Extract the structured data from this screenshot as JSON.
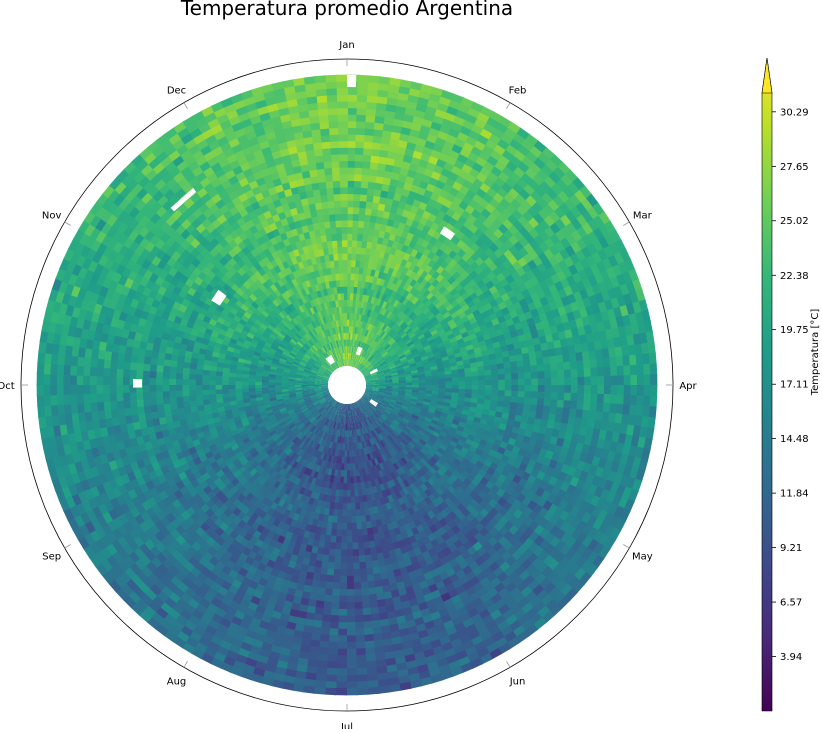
{
  "chart_data": {
    "type": "heatmap",
    "subtype": "polar",
    "title": "Temperatura promedio Argentina",
    "angular_labels": [
      "Jan",
      "Feb",
      "Mar",
      "Apr",
      "May",
      "Jun",
      "Jul",
      "Aug",
      "Sep",
      "Oct",
      "Nov",
      "Dec"
    ],
    "angular_direction": "clockwise",
    "angular_zero": "top",
    "radial_grid": false,
    "colorbar": {
      "label": "Temperatura [°C]",
      "ticks": [
        "3.94",
        "6.57",
        "9.21",
        "11.84",
        "14.48",
        "17.11",
        "19.75",
        "22.38",
        "25.02",
        "27.65",
        "30.29"
      ],
      "extend": "max",
      "colormap": "viridis",
      "colormap_stops": [
        "#440154",
        "#482878",
        "#3e4989",
        "#31688e",
        "#26828e",
        "#1f9e89",
        "#35b779",
        "#6ece58",
        "#b5de2b",
        "#fde725"
      ]
    },
    "monthly_pattern": {
      "months": [
        "Jan",
        "Feb",
        "Mar",
        "Apr",
        "May",
        "Jun",
        "Jul",
        "Aug",
        "Sep",
        "Oct",
        "Nov",
        "Dec"
      ],
      "typical_temperature": [
        24.5,
        23.0,
        20.5,
        17.0,
        13.5,
        10.5,
        9.5,
        11.5,
        14.0,
        17.0,
        20.0,
        23.0
      ]
    }
  }
}
